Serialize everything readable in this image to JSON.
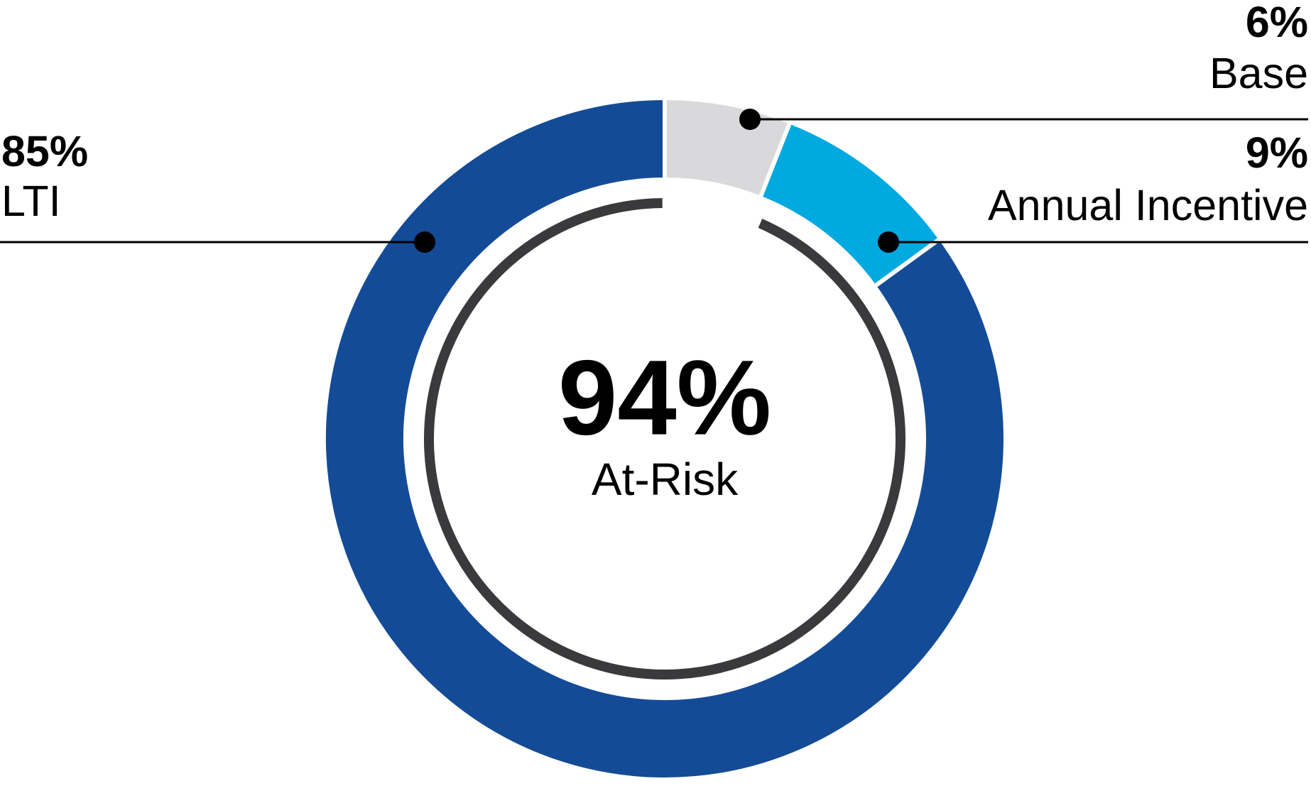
{
  "chart_data": {
    "type": "donut",
    "categories": [
      "Base",
      "Annual Incentive",
      "LTI"
    ],
    "values": [
      6,
      9,
      85
    ],
    "value_labels": [
      "6%",
      "9%",
      "85%"
    ],
    "colors": [
      "#d9d9db",
      "#00a9e0",
      "#134b97"
    ],
    "center_value": {
      "value": 94,
      "label": "94%"
    },
    "center_text": "At-Risk"
  }
}
